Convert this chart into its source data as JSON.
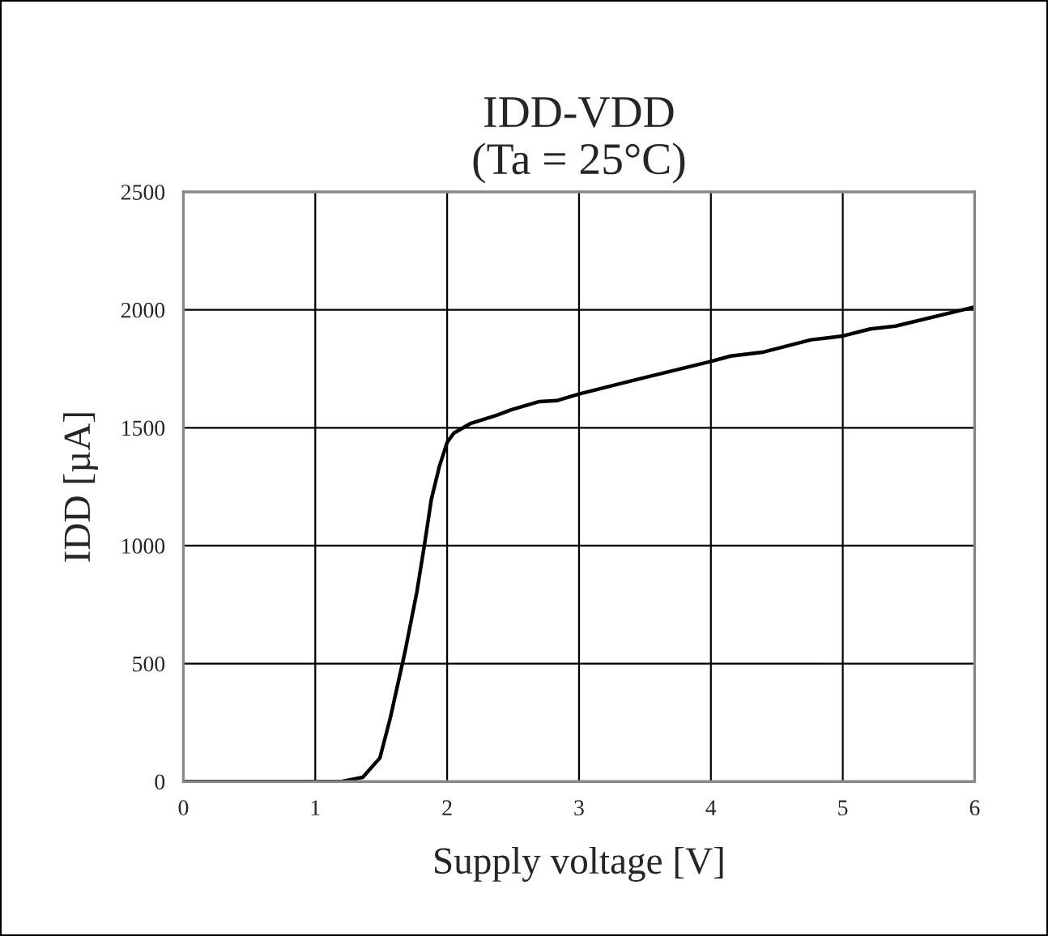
{
  "chart_data": {
    "type": "line",
    "title": "IDD-VDD\n(Ta = 25°C)",
    "xlabel": "Supply voltage [V]",
    "ylabel": "IDD [µA]",
    "series": [
      {
        "color": "#000000",
        "x": [
          0,
          0.5,
          1.0,
          1.2,
          1.36,
          1.49,
          1.57,
          1.68,
          1.77,
          1.83,
          1.88,
          1.94,
          2.0,
          2.05,
          2.18,
          2.38,
          2.49,
          2.7,
          2.83,
          3.0,
          3.49,
          4.0,
          4.15,
          4.39,
          4.76,
          5.0,
          5.21,
          5.4,
          6.0
        ],
        "values": [
          0,
          0,
          0,
          0,
          18,
          100,
          272,
          549,
          803,
          1011,
          1196,
          1334,
          1438,
          1477,
          1519,
          1554,
          1577,
          1611,
          1615,
          1643,
          1712,
          1781,
          1804,
          1820,
          1873,
          1889,
          1919,
          1931,
          2012
        ]
      }
    ],
    "xlim": [
      0,
      6
    ],
    "xticks": [
      0,
      1,
      2,
      3,
      4,
      5,
      6
    ],
    "ylim": [
      0,
      2500
    ],
    "yticks": [
      0,
      500,
      1000,
      1500,
      2000,
      2500
    ],
    "grid": true,
    "marker": "none",
    "line_style": "solid",
    "legend": false
  }
}
